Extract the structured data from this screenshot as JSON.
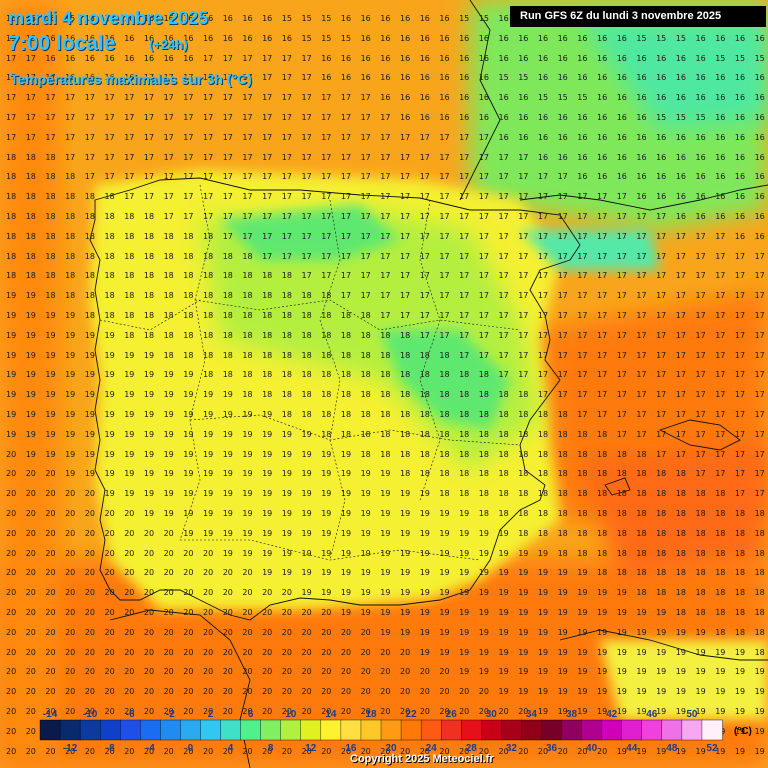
{
  "header": {
    "date_line": "mardi 4 novembre 2025",
    "time_line": "7:00 locale",
    "offset": "(+24h)",
    "subtitle": "Températures maximales sur 3h (°C)",
    "run_info": "Run GFS 6Z du lundi 3 novembre 2025"
  },
  "footer": {
    "copyright": "Copyright 2025 Meteociel.fr",
    "unit": "(°C)"
  },
  "legend": {
    "values": [
      -14,
      -12,
      -10,
      -8,
      -6,
      -4,
      -2,
      0,
      2,
      4,
      6,
      8,
      10,
      12,
      14,
      16,
      18,
      20,
      22,
      24,
      26,
      28,
      30,
      32,
      34,
      36,
      38,
      40,
      42,
      44,
      46,
      48,
      50,
      52
    ],
    "colors": [
      "#0a1a4a",
      "#0a2a6e",
      "#0c3aa0",
      "#1040c8",
      "#1e50e8",
      "#1a6cf0",
      "#1e8cf0",
      "#2aaaf0",
      "#30c8f0",
      "#40e0c8",
      "#50f08a",
      "#80f060",
      "#b0f040",
      "#e0f020",
      "#fff030",
      "#ffe040",
      "#ffc828",
      "#ff9a14",
      "#ff7808",
      "#ff5a14",
      "#f03020",
      "#e81018",
      "#c80018",
      "#a80018",
      "#900018",
      "#780028",
      "#900060",
      "#b00090",
      "#d000b8",
      "#e020d0",
      "#f040e0",
      "#f070e8",
      "#f8a8f0",
      "#fff0fa"
    ]
  },
  "grid": {
    "rows": [
      "16 16 16 15 15 16 16 16 16 16 16 16 16 16 15 15 15 16 16 16 16 16 16 15 15 16 16 16 16 16 16 16 16 16 16 16 16 16 16",
      "15 15 16 16 16 16 16 16 16 16 16 16 16 16 16 15 15 15 16 16 16 16 16 16 16 16 16 16 16 16 16 16 15 15 15 16 16 16 16",
      "17 17 16 16 16 16 16 16 16 16 17 17 17 17 17 17 16 16 16 16 16 16 16 16 16 16 16 16 16 16 16 16 16 16 16 16 15 15 15",
      "17 17 17 16 16 16 16 17 17 17 17 17 17 17 17 17 16 16 16 16 16 16 16 16 16 15 15 16 16 16 16 16 16 16 16 16 16 16 16",
      "17 17 17 17 17 17 17 17 17 17 17 17 17 17 17 17 17 17 17 16 16 16 16 16 16 16 16 15 15 15 16 16 16 16 16 16 16 16 16",
      "17 17 17 17 17 17 17 17 17 17 17 17 17 17 17 17 17 17 17 17 16 16 16 16 16 16 16 16 16 16 16 16 16 15 15 15 16 16 16",
      "17 17 17 17 17 17 17 17 17 17 17 17 17 17 17 17 17 17 17 17 17 17 17 17 17 16 16 16 16 16 16 16 16 16 16 16 16 16 16",
      "18 18 18 17 17 17 17 17 17 17 17 17 17 17 17 17 17 17 17 17 17 17 17 17 17 17 17 16 16 16 16 16 16 16 16 16 16 16 16",
      "18 18 18 18 17 17 17 17 17 17 17 17 17 17 17 17 17 17 17 17 17 17 17 17 17 17 17 17 17 16 16 16 16 16 16 16 16 16 16",
      "18 18 18 18 18 18 17 17 17 17 17 17 17 17 17 17 17 17 17 17 17 17 17 17 17 17 17 17 17 17 17 17 16 16 16 16 16 16 16",
      "18 18 18 18 18 18 18 18 17 17 17 17 17 17 17 17 17 17 17 17 17 17 17 17 17 17 17 17 17 17 17 17 17 17 16 16 16 16 16",
      "18 18 18 18 18 18 18 18 18 18 18 17 17 17 17 17 17 17 17 17 17 17 17 17 17 17 17 17 17 17 17 17 17 17 17 17 17 16 16",
      "18 18 18 18 18 18 18 18 18 18 18 18 18 17 17 17 17 17 17 17 17 17 17 17 17 17 17 17 17 17 17 17 17 17 17 17 17 17 17",
      "18 18 18 18 18 18 18 18 18 18 18 18 18 18 18 17 17 17 17 17 17 17 17 17 17 17 17 17 17 17 17 17 17 17 17 17 17 17 17",
      "19 19 18 18 18 18 18 18 18 18 18 18 18 18 18 18 18 17 17 17 17 17 17 17 17 17 17 17 17 17 17 17 17 17 17 17 17 17 17",
      "19 19 19 19 18 18 18 18 18 18 18 18 18 18 18 18 18 18 18 17 17 17 17 17 17 17 17 17 17 17 17 17 17 17 17 17 17 17 17",
      "19 19 19 19 19 19 18 18 18 18 18 18 18 18 18 18 18 18 18 18 18 17 17 17 17 17 17 17 17 17 17 17 17 17 17 17 17 17 17",
      "19 19 19 19 19 19 19 19 18 18 18 18 18 18 18 18 18 18 18 18 18 18 18 17 17 17 17 17 17 17 17 17 17 17 17 17 17 17 17",
      "19 19 19 19 19 19 19 19 19 19 18 18 18 18 18 18 18 18 18 18 18 18 18 18 18 17 17 17 17 17 17 17 17 17 17 17 17 17 17",
      "19 19 19 19 19 19 19 19 19 19 19 19 18 18 18 18 18 18 18 18 18 18 18 18 18 18 18 17 17 17 17 17 17 17 17 17 17 17 17",
      "19 19 19 19 19 19 19 19 19 19 19 19 19 19 18 18 18 18 18 18 18 18 18 18 18 18 18 18 18 17 17 17 17 17 17 17 17 17 17",
      "19 19 19 19 19 19 19 19 19 19 19 19 19 19 19 19 18 18 18 18 18 18 18 18 18 18 18 18 18 18 18 17 17 17 17 17 17 17 17",
      "20 19 19 19 19 19 19 19 19 19 19 19 19 19 19 19 19 19 18 18 18 18 18 18 18 18 18 18 18 18 18 18 18 17 17 17 17 17 17",
      "20 20 20 19 19 19 19 19 19 19 19 19 19 19 19 19 19 19 19 19 18 18 18 18 18 18 18 18 18 18 18 18 18 18 18 17 17 17 17",
      "20 20 20 20 20 19 19 19 19 19 19 19 19 19 19 19 19 19 19 19 19 19 18 18 18 18 18 18 18 18 18 18 18 18 18 18 18 17 17",
      "20 20 20 20 20 20 20 19 19 19 19 19 19 19 19 19 19 19 19 19 19 19 19 19 18 18 18 18 18 18 18 18 18 18 18 18 18 18 18",
      "20 20 20 20 20 20 20 20 20 19 19 19 19 19 19 19 19 19 19 19 19 19 19 19 19 19 18 18 18 18 18 18 18 18 18 18 18 18 18",
      "20 20 20 20 20 20 20 20 20 20 20 19 19 19 19 19 19 19 19 19 19 19 19 19 19 19 19 19 18 18 18 18 18 18 18 18 18 18 18",
      "20 20 20 20 20 20 20 20 20 20 20 20 20 19 19 19 19 19 19 19 19 19 19 19 19 19 19 19 19 19 18 18 18 18 18 18 18 18 18",
      "20 20 20 20 20 20 20 20 20 20 20 20 20 20 20 19 19 19 19 19 19 19 19 19 19 19 19 19 19 19 19 19 18 18 18 18 18 18 18",
      "20 20 20 20 20 20 20 20 20 20 20 20 20 20 20 20 20 19 19 19 19 19 19 19 19 19 19 19 19 19 19 19 19 19 18 18 18 18 18",
      "20 20 20 20 20 20 20 20 20 20 20 20 20 20 20 20 20 20 20 19 19 19 19 19 19 19 19 19 19 19 19 19 19 19 19 19 18 18 18",
      "20 20 20 20 20 20 20 20 20 20 20 20 20 20 20 20 20 20 20 20 20 19 19 19 19 19 19 19 19 19 19 19 19 19 19 19 19 19 18",
      "20 20 20 20 20 20 20 20 20 20 20 20 20 20 20 20 20 20 20 20 20 20 20 19 19 19 19 19 19 19 19 19 19 19 19 19 19 19 19",
      "20 20 20 20 20 20 20 20 20 20 20 20 20 20 20 20 20 20 20 20 20 20 20 20 20 19 19 19 19 19 19 19 19 19 19 19 19 19 19",
      "20 20 20 20 20 20 20 20 20 20 20 20 20 20 20 20 20 20 20 20 20 20 20 20 20 20 20 19 19 19 19 19 19 19 19 19 19 19 19",
      "20 20 20 20 20 20 20 20 20 20 20 20 20 20 20 20 20 20 20 20 20 20 20 20 20 20 20 20 20 19 19 19 19 19 19 19 19 19 19",
      "20 20 20 20 20 20 20 20 20 20 20 20 20 20 20 20 20 20 20 20 20 20 20 20 20 20 20 20 20 20 20 19 19 19 19 19 19 19 19"
    ]
  }
}
